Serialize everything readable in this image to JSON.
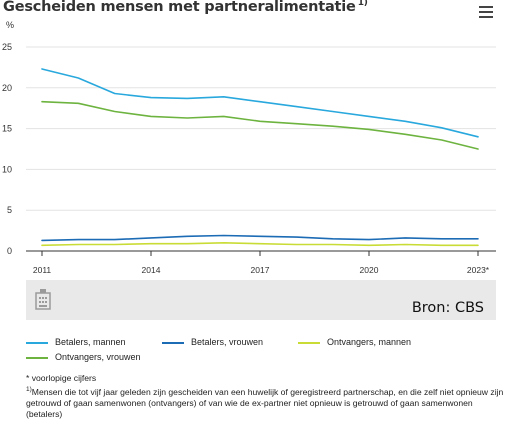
{
  "title": "Gescheiden mensen met partneralimentatie",
  "title_note": "1)",
  "menu_icon": "hamburger-menu-icon",
  "chart_data": {
    "type": "line",
    "ylabel": "%",
    "ylim": [
      0,
      25
    ],
    "yticks": [
      0,
      5,
      10,
      15,
      20,
      25
    ],
    "x": [
      2011,
      2012,
      2013,
      2014,
      2015,
      2016,
      2017,
      2018,
      2019,
      2020,
      2021,
      2022,
      2023
    ],
    "xticks": [
      2011,
      2014,
      2017,
      2020,
      2023
    ],
    "xtick_labels": [
      "2011",
      "2014",
      "2017",
      "2020",
      "2023*"
    ],
    "grid": "horizontal",
    "legend_position": "bottom",
    "series": [
      {
        "name": "Betalers, mannen",
        "color": "#29a8dd",
        "values": [
          22.3,
          21.2,
          19.3,
          18.8,
          18.7,
          18.9,
          18.3,
          17.7,
          17.1,
          16.5,
          15.9,
          15.1,
          14.0
        ]
      },
      {
        "name": "Betalers, vrouwen",
        "color": "#1c6bb5",
        "values": [
          1.3,
          1.4,
          1.4,
          1.6,
          1.8,
          1.9,
          1.8,
          1.7,
          1.5,
          1.4,
          1.6,
          1.5,
          1.5
        ]
      },
      {
        "name": "Ontvangers, mannen",
        "color": "#c9dc36",
        "values": [
          0.7,
          0.8,
          0.8,
          0.9,
          0.9,
          1.0,
          0.9,
          0.8,
          0.8,
          0.7,
          0.8,
          0.7,
          0.7
        ]
      },
      {
        "name": "Ontvangers, vrouwen",
        "color": "#6db33f",
        "values": [
          18.3,
          18.1,
          17.1,
          16.5,
          16.3,
          16.5,
          15.9,
          15.6,
          15.3,
          14.9,
          14.3,
          13.6,
          12.5
        ]
      }
    ]
  },
  "source": {
    "icon": "cbs-logo-icon",
    "text": "Bron: CBS"
  },
  "footnotes": {
    "voorlopig": "* voorlopige cijfers",
    "note_marker": "1)",
    "note_text": "Mensen die tot vijf jaar geleden zijn gescheiden van een huwelijk of geregistreerd partnerschap, en die zelf niet opnieuw zijn getrouwd of gaan samenwonen (ontvangers) of van wie de ex-partner niet opnieuw is getrouwd of gaan samenwonen (betalers)"
  }
}
